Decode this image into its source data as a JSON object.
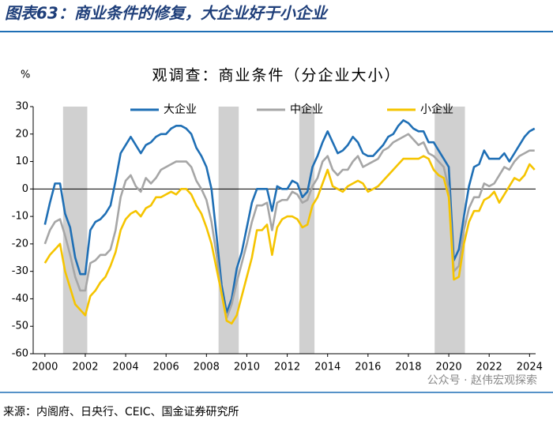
{
  "header": {
    "title": "图表63：商业条件的修复，大企业好于小企业"
  },
  "chart_data": {
    "type": "line",
    "title": "观调查：商业条件（分企业大小）",
    "y_unit": "%",
    "x": [
      2000,
      2000.25,
      2000.5,
      2000.75,
      2001,
      2001.25,
      2001.5,
      2001.75,
      2002,
      2002.25,
      2002.5,
      2002.75,
      2003,
      2003.25,
      2003.5,
      2003.75,
      2004,
      2004.25,
      2004.5,
      2004.75,
      2005,
      2005.25,
      2005.5,
      2005.75,
      2006,
      2006.25,
      2006.5,
      2006.75,
      2007,
      2007.25,
      2007.5,
      2007.75,
      2008,
      2008.25,
      2008.5,
      2008.75,
      2009,
      2009.25,
      2009.5,
      2009.75,
      2010,
      2010.25,
      2010.5,
      2010.75,
      2011,
      2011.25,
      2011.5,
      2011.75,
      2012,
      2012.25,
      2012.5,
      2012.75,
      2013,
      2013.25,
      2013.5,
      2013.75,
      2014,
      2014.25,
      2014.5,
      2014.75,
      2015,
      2015.25,
      2015.5,
      2015.75,
      2016,
      2016.25,
      2016.5,
      2016.75,
      2017,
      2017.25,
      2017.5,
      2017.75,
      2018,
      2018.25,
      2018.5,
      2018.75,
      2019,
      2019.25,
      2019.5,
      2019.75,
      2020,
      2020.25,
      2020.5,
      2020.75,
      2021,
      2021.25,
      2021.5,
      2021.75,
      2022,
      2022.25,
      2022.5,
      2022.75,
      2023,
      2023.25,
      2023.5,
      2023.75,
      2024,
      2024.25
    ],
    "series": [
      {
        "name": "大企业",
        "color": "#1f6fb5",
        "values": [
          -13,
          -5,
          2,
          2,
          -9,
          -14,
          -25,
          -31,
          -31,
          -15,
          -12,
          -11,
          -9,
          -6,
          3,
          13,
          16,
          19,
          16,
          13,
          16,
          17,
          19,
          20,
          20,
          22,
          23,
          23,
          22,
          20,
          15,
          12,
          8,
          0,
          -17,
          -35,
          -45,
          -40,
          -29,
          -23,
          -14,
          -5,
          0,
          0,
          0,
          -8,
          1,
          0,
          0,
          3,
          2,
          -3,
          -1,
          8,
          12,
          17,
          21,
          17,
          13,
          14,
          16,
          19,
          17,
          13,
          12,
          12,
          14,
          16,
          19,
          20,
          23,
          25,
          24,
          22,
          21,
          21,
          17,
          17,
          14,
          11,
          8,
          -26,
          -22,
          -10,
          1,
          8,
          9,
          14,
          11,
          11,
          11,
          13,
          10,
          13,
          16,
          19,
          21,
          22
        ]
      },
      {
        "name": "中企业",
        "color": "#a6a6a6",
        "values": [
          -20,
          -15,
          -12,
          -11,
          -17,
          -24,
          -32,
          -37,
          -37,
          -27,
          -26,
          -24,
          -24,
          -22,
          -15,
          -3,
          3,
          5,
          1,
          -1,
          4,
          2,
          4,
          7,
          8,
          9,
          10,
          10,
          10,
          8,
          3,
          0,
          -4,
          -12,
          -24,
          -38,
          -47,
          -42,
          -34,
          -27,
          -20,
          -12,
          -6,
          -6,
          -5,
          -15,
          -5,
          -4,
          -4,
          -1,
          -2,
          -5,
          -4,
          1,
          4,
          10,
          12,
          7,
          5,
          7,
          7,
          10,
          12,
          8,
          9,
          10,
          11,
          14,
          15,
          17,
          18,
          19,
          20,
          18,
          16,
          17,
          13,
          12,
          10,
          8,
          0,
          -30,
          -28,
          -15,
          -7,
          -3,
          -3,
          2,
          1,
          2,
          5,
          8,
          7,
          10,
          12,
          13,
          14,
          14
        ]
      },
      {
        "name": "小企业",
        "color": "#f5c400",
        "values": [
          -27,
          -24,
          -22,
          -20,
          -30,
          -36,
          -42,
          -44,
          -46,
          -39,
          -37,
          -34,
          -32,
          -28,
          -23,
          -15,
          -11,
          -9,
          -8,
          -10,
          -7,
          -6,
          -3,
          -3,
          -2,
          -1,
          -2,
          0,
          0,
          -2,
          -6,
          -9,
          -14,
          -20,
          -29,
          -38,
          -48,
          -49,
          -46,
          -39,
          -32,
          -25,
          -15,
          -15,
          -13,
          -24,
          -14,
          -11,
          -10,
          -10,
          -11,
          -14,
          -13,
          -6,
          -3,
          2,
          7,
          1,
          0,
          -1,
          1,
          2,
          3,
          2,
          -1,
          0,
          1,
          3,
          5,
          7,
          9,
          11,
          11,
          11,
          11,
          12,
          11,
          7,
          5,
          4,
          -3,
          -33,
          -32,
          -20,
          -12,
          -8,
          -8,
          -4,
          -3,
          -1,
          -5,
          -2,
          1,
          4,
          3,
          5,
          9,
          7
        ]
      }
    ],
    "bands": [
      [
        2000.9,
        2002.1
      ],
      [
        2008.6,
        2009.6
      ],
      [
        2012.6,
        2013.35
      ],
      [
        2019.3,
        2020.8
      ]
    ],
    "xlim": [
      1999.42,
      2024.3
    ],
    "xticks": [
      2000,
      2002,
      2004,
      2006,
      2008,
      2010,
      2012,
      2014,
      2016,
      2018,
      2020,
      2022,
      2024
    ],
    "ylim": [
      -60,
      30
    ],
    "yticks": [
      -60,
      -50,
      -40,
      -30,
      -20,
      -10,
      0,
      10,
      20,
      30
    ]
  },
  "source": "来源：内阁府、日央行、CEIC、国金证券研究所",
  "watermark": "公众号 · 赵伟宏观探索"
}
